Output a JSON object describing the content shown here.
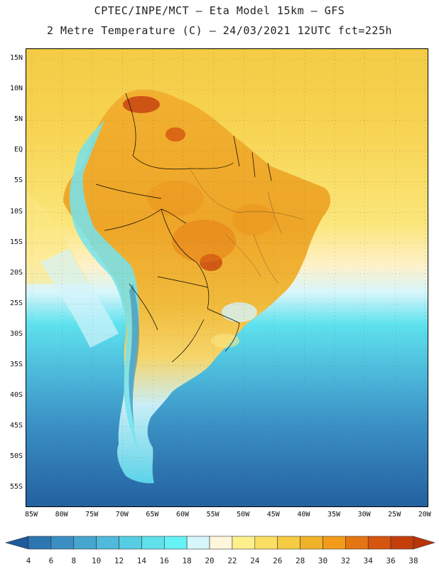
{
  "header": {
    "line1": "CPTEC/INPE/MCT –  Eta Model 15km – GFS",
    "line2": "2 Metre Temperature (C) – 24/03/2021 12UTC fct=225h"
  },
  "map": {
    "lat_labels": [
      "15N",
      "10N",
      "5N",
      "EQ",
      "5S",
      "10S",
      "15S",
      "20S",
      "25S",
      "30S",
      "35S",
      "40S",
      "45S",
      "50S",
      "55S"
    ],
    "lon_labels": [
      "85W",
      "80W",
      "75W",
      "70W",
      "65W",
      "60W",
      "55W",
      "50W",
      "45W",
      "40W",
      "35W",
      "30W",
      "25W",
      "20W"
    ]
  },
  "colorbar": {
    "labels": [
      "4",
      "6",
      "8",
      "10",
      "12",
      "14",
      "16",
      "18",
      "20",
      "22",
      "24",
      "26",
      "28",
      "30",
      "32",
      "34",
      "36",
      "38"
    ],
    "colors": [
      "#1f5a9a",
      "#2c77b0",
      "#3a8ec2",
      "#46a6cf",
      "#4fbadb",
      "#56cde3",
      "#5fe0ea",
      "#66f2f5",
      "#d6f6fb",
      "#fff7dc",
      "#fdf08d",
      "#fbdf63",
      "#f5cb43",
      "#efb32a",
      "#f29b1a",
      "#e57513",
      "#d6550f",
      "#c43f0b",
      "#b8350a"
    ]
  }
}
